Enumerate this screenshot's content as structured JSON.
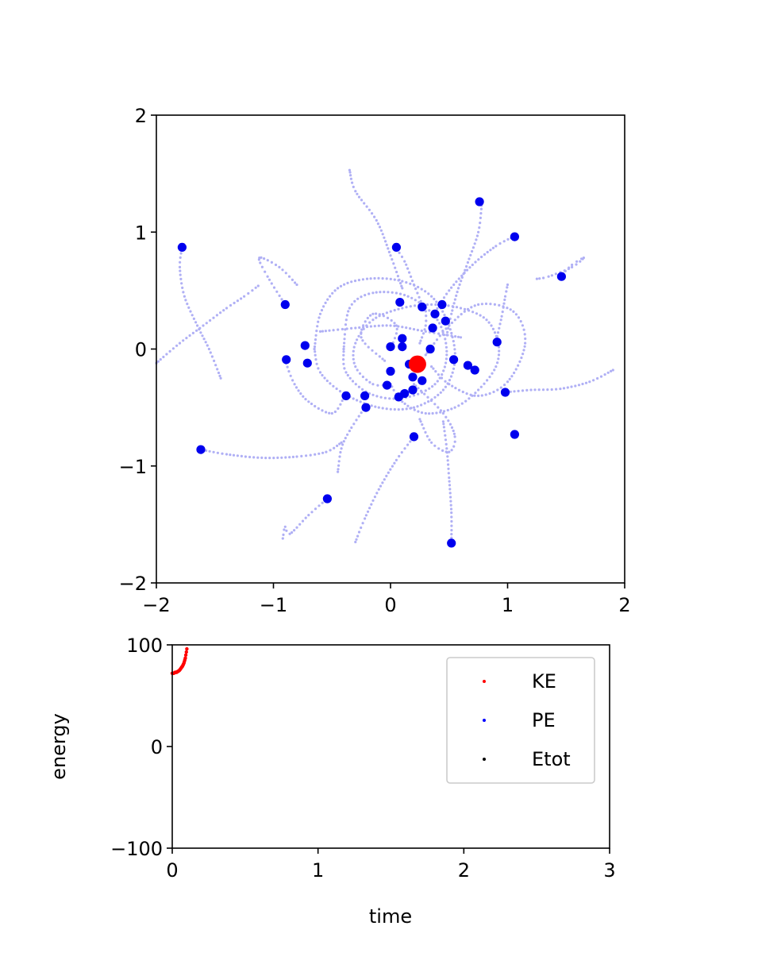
{
  "colors": {
    "trail": "#b0b0f5",
    "body": "#0000ee",
    "center": "#ff0000",
    "ke": "#ff0000",
    "pe": "#0000ff",
    "etot": "#000000"
  },
  "chart_data": [
    {
      "type": "scatter",
      "title": "",
      "xlabel": "",
      "ylabel": "",
      "xlim": [
        -2,
        2
      ],
      "ylim": [
        -2,
        2
      ],
      "xticks": [
        "−2",
        "−1",
        "0",
        "1",
        "2"
      ],
      "yticks": [
        "−2",
        "−1",
        "0",
        "1",
        "2"
      ],
      "grid": false,
      "trails": [
        [
          [
            0.48,
            0.12
          ],
          [
            0.52,
            0.3
          ],
          [
            0.58,
            0.52
          ],
          [
            0.66,
            0.74
          ],
          [
            0.75,
            1.0
          ],
          [
            0.78,
            1.25
          ]
        ],
        [
          [
            0.36,
            0.28
          ],
          [
            0.5,
            0.5
          ],
          [
            0.7,
            0.72
          ],
          [
            0.9,
            0.88
          ],
          [
            1.05,
            0.96
          ]
        ],
        [
          [
            0.28,
            0.36
          ],
          [
            0.2,
            0.55
          ],
          [
            0.12,
            0.75
          ],
          [
            0.04,
            0.87
          ]
        ],
        [
          [
            0.1,
            0.52
          ],
          [
            0.0,
            0.8
          ],
          [
            -0.12,
            1.1
          ],
          [
            -0.3,
            1.35
          ],
          [
            -0.35,
            1.53
          ]
        ],
        [
          [
            -1.78,
            0.87
          ],
          [
            -1.8,
            0.7
          ],
          [
            -1.76,
            0.45
          ],
          [
            -1.65,
            0.2
          ],
          [
            -1.55,
            0.0
          ],
          [
            -1.45,
            -0.25
          ]
        ],
        [
          [
            -2.0,
            -0.12
          ],
          [
            -1.8,
            0.05
          ],
          [
            -1.6,
            0.2
          ],
          [
            -1.4,
            0.35
          ],
          [
            -1.25,
            0.45
          ],
          [
            -1.13,
            0.54
          ]
        ],
        [
          [
            -1.62,
            -0.86
          ],
          [
            -1.4,
            -0.9
          ],
          [
            -1.1,
            -0.93
          ],
          [
            -0.8,
            -0.92
          ],
          [
            -0.55,
            -0.88
          ],
          [
            -0.42,
            -0.8
          ]
        ],
        [
          [
            -0.54,
            -1.28
          ],
          [
            -0.7,
            -1.42
          ],
          [
            -0.86,
            -1.58
          ],
          [
            -0.9,
            -1.52
          ],
          [
            -0.92,
            -1.62
          ]
        ],
        [
          [
            0.2,
            -0.75
          ],
          [
            0.05,
            -0.95
          ],
          [
            -0.1,
            -1.2
          ],
          [
            -0.22,
            -1.45
          ],
          [
            -0.3,
            -1.65
          ]
        ],
        [
          [
            0.52,
            -1.66
          ],
          [
            0.52,
            -1.4
          ],
          [
            0.5,
            -1.1
          ],
          [
            0.48,
            -0.85
          ],
          [
            0.45,
            -0.62
          ]
        ],
        [
          [
            1.45,
            0.62
          ],
          [
            1.55,
            0.72
          ],
          [
            1.65,
            0.78
          ],
          [
            1.55,
            0.7
          ],
          [
            1.35,
            0.62
          ],
          [
            1.25,
            0.6
          ]
        ],
        [
          [
            1.9,
            -0.18
          ],
          [
            1.7,
            -0.28
          ],
          [
            1.45,
            -0.34
          ],
          [
            1.2,
            -0.35
          ],
          [
            0.98,
            -0.37
          ]
        ],
        [
          [
            -0.9,
            0.38
          ],
          [
            -1.05,
            0.62
          ],
          [
            -1.12,
            0.78
          ],
          [
            -0.95,
            0.7
          ],
          [
            -0.8,
            0.55
          ]
        ],
        [
          [
            -0.9,
            -0.1
          ],
          [
            -0.82,
            -0.3
          ],
          [
            -0.7,
            -0.45
          ],
          [
            -0.5,
            -0.55
          ],
          [
            -0.4,
            -0.42
          ]
        ],
        [
          [
            -0.22,
            -0.5
          ],
          [
            -0.35,
            -0.7
          ],
          [
            -0.42,
            -0.85
          ],
          [
            -0.45,
            -1.05
          ]
        ],
        [
          [
            0.9,
            0.06
          ],
          [
            0.95,
            0.28
          ],
          [
            0.98,
            0.45
          ],
          [
            1.0,
            0.55
          ]
        ],
        [
          [
            0.3,
            0.35
          ],
          [
            0.3,
            0.2
          ],
          [
            0.25,
            0.05
          ]
        ],
        [
          [
            0.0,
            -0.3
          ],
          [
            0.1,
            -0.45
          ],
          [
            0.3,
            -0.55
          ],
          [
            0.55,
            -0.5
          ],
          [
            0.75,
            -0.35
          ],
          [
            0.9,
            -0.15
          ],
          [
            0.92,
            0.05
          ],
          [
            0.82,
            0.25
          ],
          [
            0.6,
            0.35
          ],
          [
            0.35,
            0.38
          ],
          [
            0.1,
            0.35
          ],
          [
            -0.15,
            0.25
          ],
          [
            -0.3,
            0.05
          ],
          [
            -0.3,
            -0.15
          ],
          [
            -0.15,
            -0.3
          ],
          [
            0.0,
            -0.3
          ]
        ],
        [
          [
            -0.65,
            0.0
          ],
          [
            -0.6,
            0.3
          ],
          [
            -0.45,
            0.52
          ],
          [
            -0.2,
            0.6
          ],
          [
            0.1,
            0.58
          ],
          [
            0.35,
            0.45
          ],
          [
            0.5,
            0.2
          ],
          [
            0.55,
            -0.1
          ],
          [
            0.45,
            -0.35
          ],
          [
            0.2,
            -0.5
          ],
          [
            -0.1,
            -0.5
          ],
          [
            -0.4,
            -0.38
          ],
          [
            -0.6,
            -0.2
          ],
          [
            -0.65,
            0.0
          ]
        ],
        [
          [
            -0.4,
            0.0
          ],
          [
            -0.35,
            0.35
          ],
          [
            -0.15,
            0.48
          ],
          [
            0.15,
            0.45
          ],
          [
            0.4,
            0.25
          ],
          [
            0.48,
            -0.05
          ],
          [
            0.38,
            -0.3
          ],
          [
            0.1,
            -0.42
          ],
          [
            -0.18,
            -0.38
          ],
          [
            -0.38,
            -0.2
          ],
          [
            -0.4,
            0.0
          ]
        ],
        [
          [
            0.3,
            -0.05
          ],
          [
            0.5,
            0.2
          ],
          [
            0.75,
            0.38
          ],
          [
            1.05,
            0.32
          ],
          [
            1.15,
            0.05
          ],
          [
            1.0,
            -0.28
          ],
          [
            0.75,
            -0.4
          ],
          [
            0.5,
            -0.3
          ],
          [
            0.35,
            -0.15
          ]
        ],
        [
          [
            -0.6,
            0.15
          ],
          [
            -0.3,
            0.18
          ],
          [
            0.0,
            0.2
          ],
          [
            0.3,
            0.15
          ],
          [
            0.6,
            0.1
          ]
        ],
        [
          [
            0.2,
            -0.3
          ],
          [
            0.45,
            -0.55
          ],
          [
            0.55,
            -0.75
          ],
          [
            0.5,
            -0.88
          ],
          [
            0.35,
            -0.8
          ],
          [
            0.25,
            -0.6
          ]
        ],
        [
          [
            -0.05,
            -0.1
          ],
          [
            -0.25,
            0.1
          ],
          [
            -0.15,
            0.3
          ],
          [
            0.05,
            0.2
          ],
          [
            0.0,
            0.0
          ]
        ]
      ],
      "bodies": [
        [
          0.76,
          1.26
        ],
        [
          1.06,
          0.96
        ],
        [
          0.05,
          0.87
        ],
        [
          -1.78,
          0.87
        ],
        [
          1.46,
          0.62
        ],
        [
          -0.9,
          0.38
        ],
        [
          0.08,
          0.4
        ],
        [
          0.27,
          0.36
        ],
        [
          0.44,
          0.38
        ],
        [
          0.38,
          0.3
        ],
        [
          0.47,
          0.24
        ],
        [
          0.36,
          0.18
        ],
        [
          0.91,
          0.06
        ],
        [
          -0.73,
          0.03
        ],
        [
          -0.89,
          -0.09
        ],
        [
          -0.71,
          -0.12
        ],
        [
          0.0,
          0.02
        ],
        [
          0.1,
          0.02
        ],
        [
          0.1,
          0.09
        ],
        [
          0.34,
          0.0
        ],
        [
          0.54,
          -0.09
        ],
        [
          0.66,
          -0.14
        ],
        [
          0.72,
          -0.18
        ],
        [
          0.0,
          -0.19
        ],
        [
          0.16,
          -0.13
        ],
        [
          0.19,
          -0.24
        ],
        [
          0.27,
          -0.27
        ],
        [
          -0.03,
          -0.31
        ],
        [
          -0.38,
          -0.4
        ],
        [
          -0.22,
          -0.4
        ],
        [
          0.19,
          -0.35
        ],
        [
          0.12,
          -0.38
        ],
        [
          0.07,
          -0.41
        ],
        [
          -0.21,
          -0.5
        ],
        [
          0.98,
          -0.37
        ],
        [
          1.06,
          -0.73
        ],
        [
          0.2,
          -0.75
        ],
        [
          -1.62,
          -0.86
        ],
        [
          -0.54,
          -1.28
        ],
        [
          0.52,
          -1.66
        ]
      ],
      "center": [
        0.23,
        -0.13
      ]
    },
    {
      "type": "scatter",
      "title": "",
      "xlabel": "time",
      "ylabel": "energy",
      "xlim": [
        0,
        3
      ],
      "ylim": [
        -100,
        100
      ],
      "xticks": [
        "0",
        "1",
        "2",
        "3"
      ],
      "yticks": [
        "−100",
        "0",
        "100"
      ],
      "grid": false,
      "legend_position": "top-right",
      "series": [
        {
          "name": "KE",
          "color": "#ff0000",
          "x": [
            0.0,
            0.01,
            0.02,
            0.03,
            0.04,
            0.05,
            0.06,
            0.07,
            0.08,
            0.09,
            0.1
          ],
          "y": [
            72,
            72,
            73,
            73,
            74,
            75,
            77,
            79,
            82,
            87,
            96
          ]
        },
        {
          "name": "PE",
          "color": "#0000ff",
          "x": [],
          "y": []
        },
        {
          "name": "Etot",
          "color": "#000000",
          "x": [],
          "y": []
        }
      ]
    }
  ]
}
